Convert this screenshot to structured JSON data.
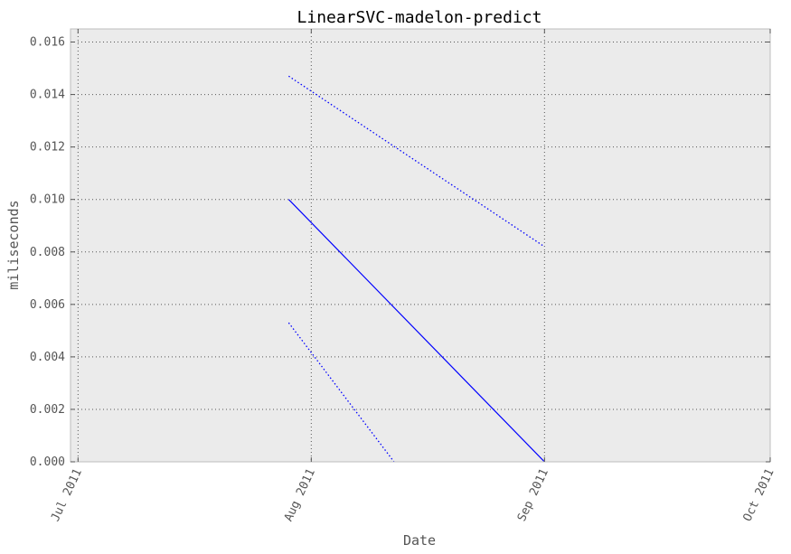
{
  "chart_data": {
    "type": "line",
    "title": "LinearSVC-madelon-predict",
    "xlabel": "Date",
    "ylabel": "miliseconds",
    "x_tick_labels": [
      "Jul 2011",
      "Aug 2011",
      "Sep 2011",
      "Oct 2011"
    ],
    "x_ticks": [
      "2011-07-01",
      "2011-08-01",
      "2011-09-01",
      "2011-10-01"
    ],
    "y_tick_labels": [
      "0.000",
      "0.002",
      "0.004",
      "0.006",
      "0.008",
      "0.010",
      "0.012",
      "0.014",
      "0.016"
    ],
    "ylim": [
      0,
      0.0165
    ],
    "xlim": [
      "2011-06-30",
      "2011-10-01"
    ],
    "grid": true,
    "series": [
      {
        "style": "solid",
        "color": "#0000ff",
        "x": [
          "2011-07-29",
          "2011-09-01"
        ],
        "y": [
          0.01,
          0.0
        ]
      },
      {
        "style": "dotted",
        "color": "#0000ff",
        "x": [
          "2011-07-29",
          "2011-09-01"
        ],
        "y": [
          0.0147,
          0.0082
        ]
      },
      {
        "style": "dotted",
        "color": "#0000ff",
        "x": [
          "2011-07-29",
          "2011-08-12"
        ],
        "y": [
          0.0053,
          0.0
        ]
      }
    ],
    "colors": {
      "plot_background": "#ebebeb",
      "grid": "#555555",
      "frame": "#bcbcbc"
    }
  }
}
